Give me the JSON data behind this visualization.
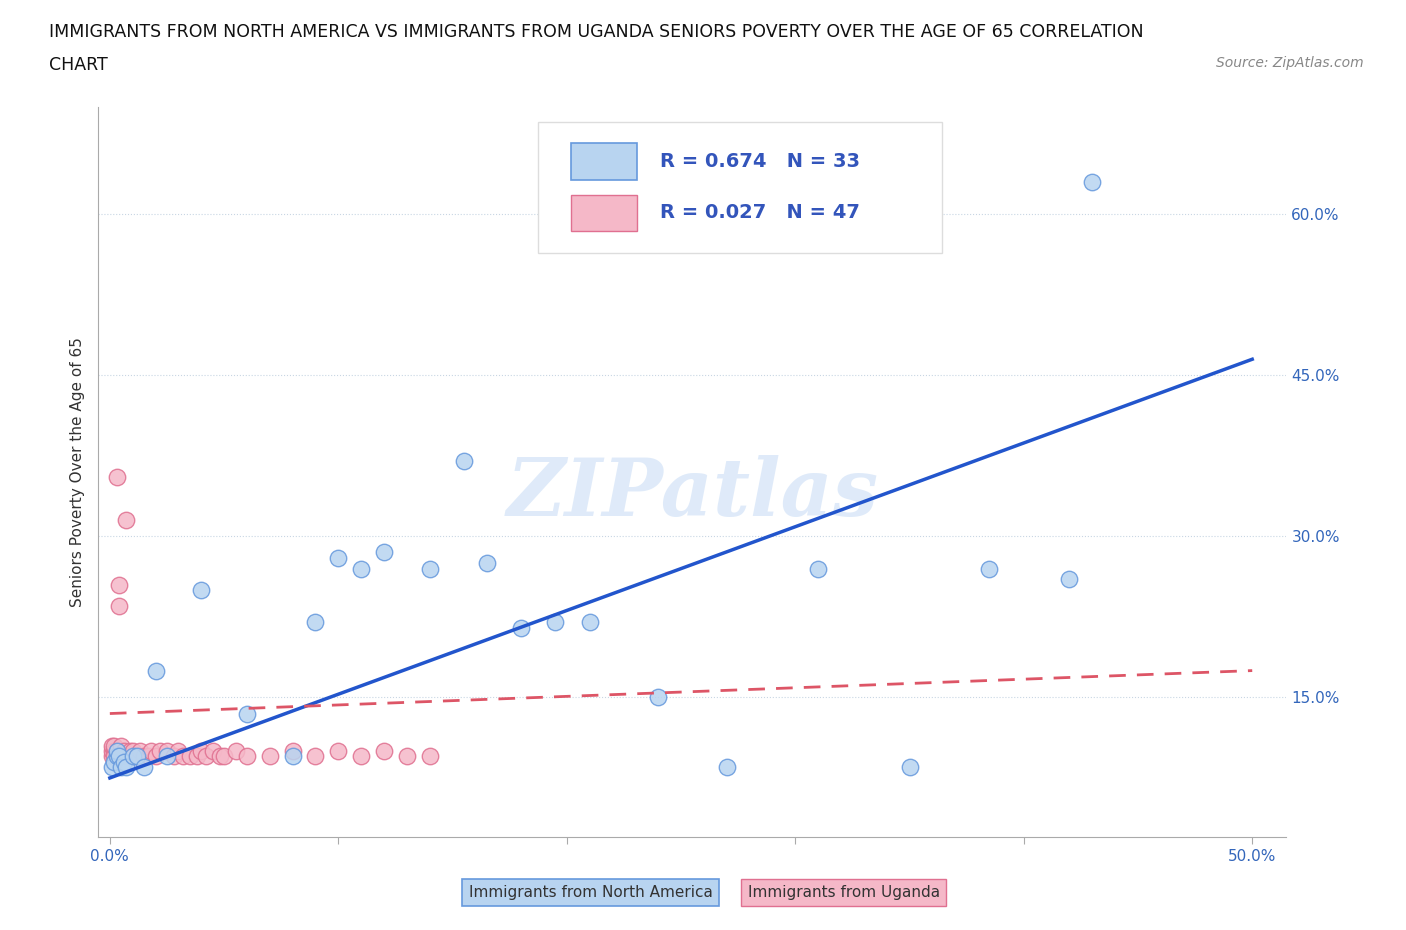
{
  "title_line1": "IMMIGRANTS FROM NORTH AMERICA VS IMMIGRANTS FROM UGANDA SENIORS POVERTY OVER THE AGE OF 65 CORRELATION",
  "title_line2": "CHART",
  "source_text": "Source: ZipAtlas.com",
  "ylabel": "Seniors Poverty Over the Age of 65",
  "xlim": [
    -0.005,
    0.515
  ],
  "ylim": [
    0.02,
    0.7
  ],
  "xticks": [
    0.0,
    0.1,
    0.2,
    0.3,
    0.4,
    0.5
  ],
  "xticklabels": [
    "0.0%",
    "",
    "",
    "",
    "",
    "50.0%"
  ],
  "yticks": [
    0.15,
    0.3,
    0.45,
    0.6
  ],
  "yticklabels": [
    "15.0%",
    "30.0%",
    "45.0%",
    "60.0%"
  ],
  "watermark": "ZIPatlas",
  "legend_R_north": "R = 0.674",
  "legend_N_north": "N = 33",
  "legend_R_uganda": "R = 0.027",
  "legend_N_uganda": "N = 47",
  "north_america_color": "#b8d4f0",
  "north_america_edge": "#6699dd",
  "uganda_color": "#f5b8c8",
  "uganda_edge": "#e07090",
  "trend_north_color": "#2255cc",
  "trend_uganda_color": "#dd5566",
  "trend_north_x0": 0.0,
  "trend_north_y0": 0.075,
  "trend_north_x1": 0.5,
  "trend_north_y1": 0.465,
  "trend_uganda_x0": 0.0,
  "trend_uganda_y0": 0.135,
  "trend_uganda_x1": 0.5,
  "trend_uganda_y1": 0.175,
  "north_america_x": [
    0.001,
    0.002,
    0.003,
    0.003,
    0.004,
    0.005,
    0.006,
    0.007,
    0.01,
    0.012,
    0.015,
    0.02,
    0.025,
    0.04,
    0.06,
    0.08,
    0.09,
    0.1,
    0.11,
    0.12,
    0.14,
    0.155,
    0.165,
    0.18,
    0.195,
    0.21,
    0.24,
    0.27,
    0.31,
    0.35,
    0.385,
    0.42,
    0.43
  ],
  "north_america_y": [
    0.085,
    0.09,
    0.095,
    0.1,
    0.095,
    0.085,
    0.09,
    0.085,
    0.095,
    0.095,
    0.085,
    0.175,
    0.095,
    0.25,
    0.135,
    0.095,
    0.22,
    0.28,
    0.27,
    0.285,
    0.27,
    0.37,
    0.275,
    0.215,
    0.22,
    0.22,
    0.15,
    0.085,
    0.27,
    0.085,
    0.27,
    0.26,
    0.63
  ],
  "uganda_x": [
    0.001,
    0.001,
    0.001,
    0.002,
    0.002,
    0.002,
    0.003,
    0.003,
    0.003,
    0.004,
    0.004,
    0.005,
    0.005,
    0.006,
    0.007,
    0.008,
    0.009,
    0.01,
    0.01,
    0.012,
    0.013,
    0.015,
    0.017,
    0.018,
    0.02,
    0.022,
    0.025,
    0.028,
    0.03,
    0.032,
    0.035,
    0.038,
    0.04,
    0.042,
    0.045,
    0.048,
    0.05,
    0.055,
    0.06,
    0.07,
    0.08,
    0.09,
    0.1,
    0.11,
    0.12,
    0.13,
    0.14
  ],
  "uganda_y": [
    0.095,
    0.1,
    0.105,
    0.1,
    0.095,
    0.105,
    0.1,
    0.095,
    0.355,
    0.235,
    0.255,
    0.1,
    0.105,
    0.1,
    0.315,
    0.095,
    0.1,
    0.095,
    0.1,
    0.095,
    0.1,
    0.095,
    0.095,
    0.1,
    0.095,
    0.1,
    0.1,
    0.095,
    0.1,
    0.095,
    0.095,
    0.095,
    0.1,
    0.095,
    0.1,
    0.095,
    0.095,
    0.1,
    0.095,
    0.095,
    0.1,
    0.095,
    0.1,
    0.095,
    0.1,
    0.095,
    0.095
  ]
}
